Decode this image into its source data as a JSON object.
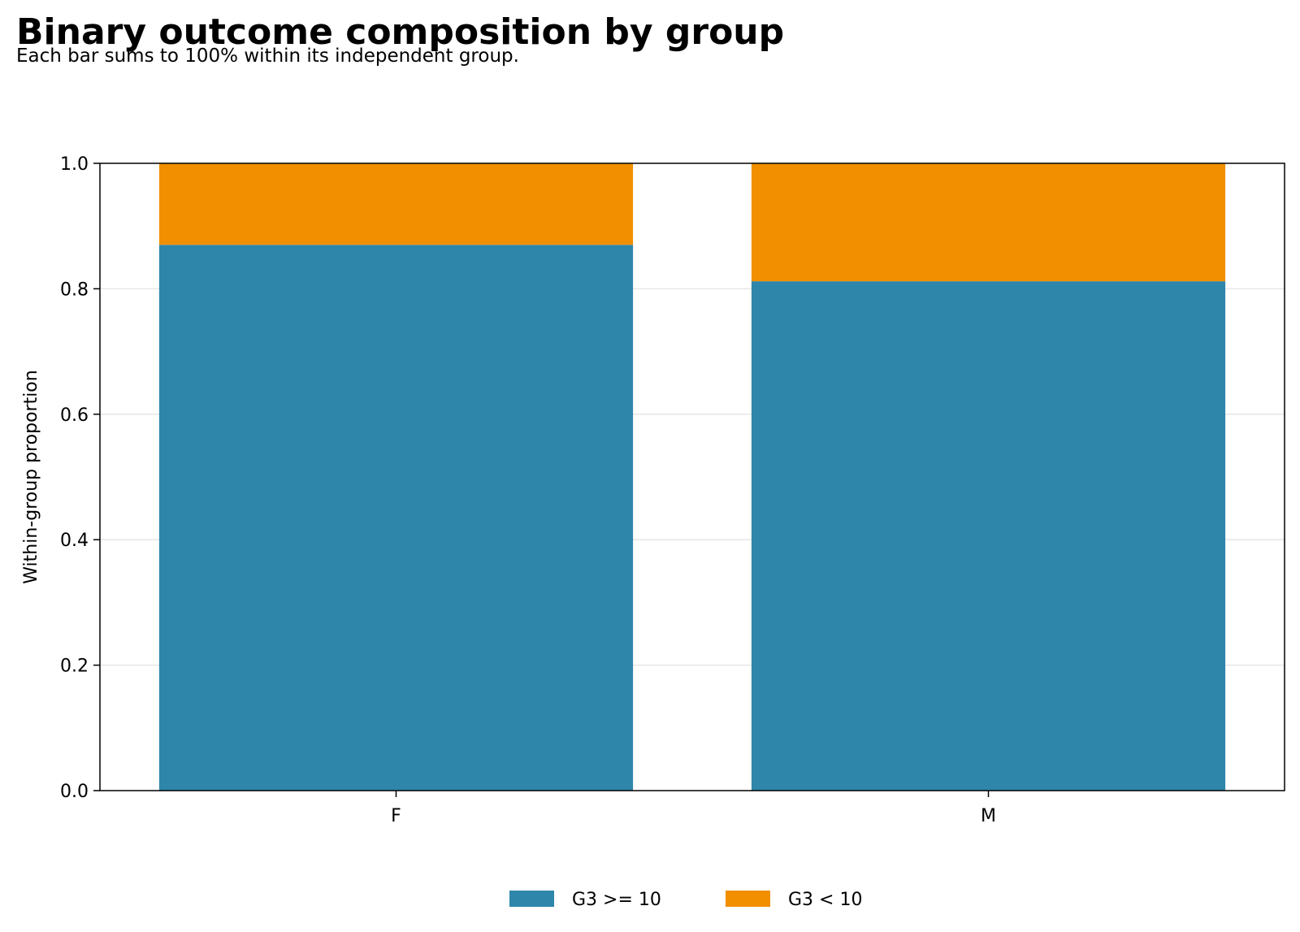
{
  "chart_data": {
    "type": "bar",
    "stacked": true,
    "title": "Binary outcome composition by group",
    "subtitle": "Each bar sums to 100% within its independent group.",
    "xlabel": "",
    "ylabel": "Within-group proportion",
    "categories": [
      "F",
      "M"
    ],
    "ylim": [
      0,
      1.0
    ],
    "yticks": [
      "0.0",
      "0.2",
      "0.4",
      "0.6",
      "0.8",
      "1.0"
    ],
    "grid": "y",
    "legend_position": "bottom-center",
    "series": [
      {
        "name": "G3 >= 10",
        "values": [
          0.87,
          0.812
        ],
        "color": "#2e86ab"
      },
      {
        "name": "G3 < 10",
        "values": [
          0.13,
          0.188
        ],
        "color": "#f18f01"
      }
    ]
  }
}
